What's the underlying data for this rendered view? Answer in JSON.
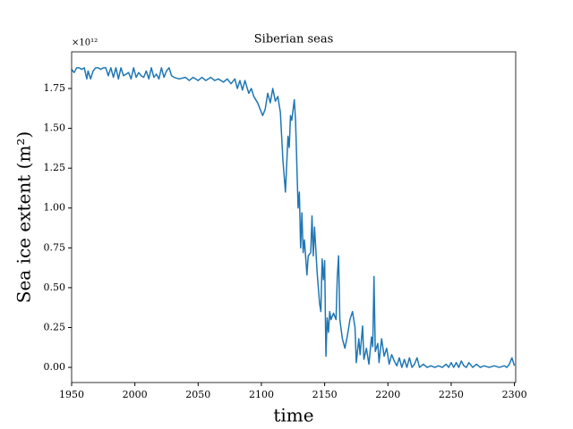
{
  "chart_data": {
    "type": "line",
    "title": "Siberian seas",
    "x_label": "time",
    "y_label": "Sea ice extent (m²)",
    "y_offset_label": "×10¹²",
    "x": [
      1950,
      1952,
      1954,
      1956,
      1958,
      1960,
      1962,
      1963,
      1965,
      1967,
      1969,
      1971,
      1973,
      1975,
      1977,
      1979,
      1981,
      1983,
      1985,
      1987,
      1989,
      1991,
      1993,
      1995,
      1997,
      1999,
      2001,
      2003,
      2005,
      2007,
      2009,
      2011,
      2013,
      2015,
      2017,
      2019,
      2021,
      2023,
      2025,
      2027,
      2029,
      2031,
      2035,
      2040,
      2043,
      2046,
      2050,
      2053,
      2056,
      2060,
      2063,
      2066,
      2070,
      2073,
      2076,
      2079,
      2081,
      2083,
      2085,
      2087,
      2090,
      2092,
      2094,
      2097,
      2099,
      2101,
      2103,
      2105,
      2107,
      2109,
      2111,
      2113,
      2115,
      2117,
      2119,
      2121,
      2122,
      2123,
      2124,
      2126,
      2127,
      2129,
      2130,
      2131,
      2132,
      2133,
      2134,
      2136,
      2137,
      2139,
      2140,
      2141,
      2142,
      2144,
      2146,
      2147,
      2148,
      2149,
      2150,
      2151,
      2152,
      2153,
      2154,
      2155,
      2157,
      2159,
      2160,
      2161,
      2162,
      2164,
      2166,
      2168,
      2170,
      2172,
      2174,
      2175,
      2177,
      2178,
      2180,
      2181,
      2183,
      2185,
      2187,
      2188,
      2189,
      2190,
      2192,
      2193,
      2195,
      2197,
      2199,
      2201,
      2203,
      2205,
      2207,
      2209,
      2211,
      2213,
      2215,
      2217,
      2219,
      2221,
      2223,
      2225,
      2228,
      2231,
      2234,
      2237,
      2240,
      2243,
      2246,
      2248,
      2250,
      2252,
      2254,
      2256,
      2258,
      2260,
      2262,
      2264,
      2267,
      2270,
      2273,
      2276,
      2280,
      2284,
      2288,
      2292,
      2294,
      2296,
      2298,
      2300
    ],
    "series": [
      {
        "name": "Sea ice extent",
        "color": "#1f77b4",
        "values": [
          1.87,
          1.85,
          1.88,
          1.88,
          1.87,
          1.88,
          1.81,
          1.86,
          1.81,
          1.86,
          1.88,
          1.88,
          1.87,
          1.88,
          1.88,
          1.83,
          1.88,
          1.82,
          1.88,
          1.81,
          1.88,
          1.83,
          1.84,
          1.85,
          1.81,
          1.88,
          1.82,
          1.85,
          1.83,
          1.82,
          1.86,
          1.81,
          1.88,
          1.82,
          1.84,
          1.81,
          1.88,
          1.82,
          1.86,
          1.88,
          1.83,
          1.82,
          1.81,
          1.82,
          1.8,
          1.82,
          1.8,
          1.82,
          1.8,
          1.82,
          1.8,
          1.81,
          1.79,
          1.81,
          1.78,
          1.81,
          1.75,
          1.8,
          1.74,
          1.8,
          1.72,
          1.75,
          1.7,
          1.66,
          1.62,
          1.58,
          1.62,
          1.72,
          1.66,
          1.75,
          1.67,
          1.7,
          1.6,
          1.3,
          1.1,
          1.45,
          1.38,
          1.58,
          1.55,
          1.68,
          1.55,
          1.0,
          1.1,
          0.75,
          0.97,
          0.72,
          0.8,
          0.58,
          0.7,
          0.72,
          0.95,
          0.7,
          0.88,
          0.6,
          0.4,
          0.35,
          0.68,
          0.55,
          0.67,
          0.07,
          0.31,
          0.22,
          0.35,
          0.3,
          0.34,
          0.3,
          0.57,
          0.7,
          0.3,
          0.18,
          0.12,
          0.2,
          0.3,
          0.35,
          0.25,
          0.03,
          0.18,
          0.08,
          0.26,
          0.05,
          0.12,
          0.02,
          0.19,
          0.13,
          0.57,
          0.1,
          0.15,
          0.03,
          0.18,
          0.07,
          0.12,
          0.02,
          0.08,
          0.04,
          0.01,
          0.06,
          0.0,
          0.05,
          0.0,
          0.06,
          0.0,
          0.02,
          0.06,
          0.0,
          0.02,
          0.0,
          0.01,
          0.0,
          0.01,
          0.0,
          0.02,
          0.0,
          0.03,
          0.0,
          0.03,
          0.0,
          0.04,
          0.01,
          0.0,
          0.03,
          0.0,
          0.02,
          0.0,
          0.01,
          0.0,
          0.01,
          0.0,
          0.01,
          0.0,
          0.02,
          0.06,
          0.01
        ]
      }
    ],
    "xlim": [
      1950,
      2301
    ],
    "xticks": [
      1950,
      2000,
      2050,
      2100,
      2150,
      2200,
      2250,
      2300
    ],
    "ylim": [
      -0.095,
      1.98
    ],
    "yticks": [
      {
        "value": 0,
        "label": "0.00"
      },
      {
        "value": 0.25,
        "label": "0.25"
      },
      {
        "value": 0.5,
        "label": "0.50"
      },
      {
        "value": 0.75,
        "label": "0.75"
      },
      {
        "value": 1,
        "label": "1.00"
      },
      {
        "value": 1.25,
        "label": "1.25"
      },
      {
        "value": 1.5,
        "label": "1.50"
      },
      {
        "value": 1.75,
        "label": "1.75"
      }
    ],
    "grid": false
  }
}
